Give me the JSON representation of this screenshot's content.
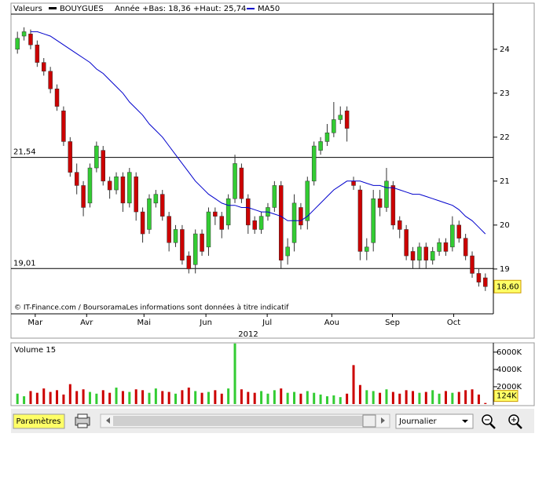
{
  "chart_data": {
    "type": "candlestick",
    "legend_label": "Valeurs",
    "symbol": "BOUYGUES",
    "range_text": "Année +Bas: 18,36 +Haut: 25,74",
    "copyright": "© IT-Finance.com / BoursoramaLes informations sont données à titre indicatif",
    "year": "2012",
    "open": [
      24.0,
      24.3,
      24.35,
      24.1,
      23.7,
      23.5,
      23.1,
      22.6,
      21.9,
      21.2,
      20.9,
      20.5,
      21.3,
      21.7,
      21.0,
      20.8,
      21.1,
      20.5,
      21.1,
      20.3,
      19.9,
      20.5,
      20.7,
      20.2,
      19.6,
      19.9,
      19.3,
      19.1,
      19.8,
      19.5,
      20.3,
      20.2,
      20.0,
      20.6,
      21.3,
      20.6,
      20.1,
      19.9,
      20.2,
      20.4,
      20.9,
      19.3,
      19.6,
      20.4,
      20.1,
      21.0,
      21.7,
      21.9,
      22.1,
      22.4,
      22.6,
      21.0,
      20.8,
      19.4,
      19.6,
      20.6,
      20.4,
      20.9,
      20.1,
      19.9,
      19.4,
      19.2,
      19.5,
      19.2,
      19.4,
      19.6,
      19.5,
      20.0,
      19.7,
      19.3,
      18.9,
      18.8
    ],
    "high": [
      24.4,
      24.5,
      24.45,
      24.2,
      23.8,
      23.6,
      23.2,
      22.7,
      22.0,
      21.4,
      21.0,
      21.4,
      21.9,
      21.8,
      21.1,
      21.2,
      21.2,
      21.3,
      21.2,
      20.4,
      20.7,
      20.8,
      20.8,
      20.3,
      20.0,
      20.0,
      19.4,
      19.9,
      19.9,
      20.4,
      20.4,
      20.3,
      20.7,
      21.6,
      21.4,
      20.7,
      20.2,
      20.3,
      20.5,
      21.0,
      21.0,
      19.7,
      20.7,
      20.5,
      21.1,
      21.9,
      22.0,
      22.3,
      22.8,
      22.7,
      22.7,
      21.1,
      20.9,
      19.7,
      20.8,
      20.8,
      21.3,
      21.0,
      20.2,
      20.0,
      19.5,
      19.6,
      19.6,
      19.5,
      19.7,
      19.7,
      20.2,
      20.1,
      19.8,
      19.4,
      19.0,
      18.9
    ],
    "low": [
      23.9,
      24.2,
      24.0,
      23.6,
      23.4,
      23.0,
      22.6,
      21.8,
      21.1,
      20.7,
      20.2,
      20.4,
      21.2,
      20.9,
      20.6,
      20.7,
      20.3,
      20.4,
      20.1,
      19.6,
      19.8,
      20.4,
      20.1,
      19.4,
      19.5,
      19.1,
      18.9,
      18.9,
      19.3,
      19.3,
      20.0,
      19.7,
      19.9,
      20.5,
      20.5,
      19.8,
      19.8,
      19.8,
      20.1,
      20.3,
      19.0,
      19.1,
      19.4,
      19.9,
      19.9,
      20.9,
      21.6,
      21.8,
      22.0,
      22.3,
      21.9,
      20.8,
      19.2,
      19.2,
      19.4,
      20.2,
      20.3,
      19.9,
      19.7,
      19.2,
      19.0,
      19.0,
      19.0,
      19.1,
      19.3,
      19.3,
      19.4,
      19.6,
      19.2,
      18.8,
      18.6,
      18.5
    ],
    "close": [
      24.25,
      24.4,
      24.1,
      23.7,
      23.5,
      23.1,
      22.7,
      21.9,
      21.2,
      20.9,
      20.4,
      21.3,
      21.8,
      21.0,
      20.8,
      21.1,
      20.5,
      21.2,
      20.3,
      19.8,
      20.6,
      20.7,
      20.2,
      19.6,
      19.9,
      19.2,
      19.0,
      19.8,
      19.4,
      20.3,
      20.2,
      19.9,
      20.6,
      21.4,
      20.6,
      20.0,
      19.9,
      20.2,
      20.4,
      20.9,
      19.2,
      19.5,
      20.5,
      20.0,
      21.0,
      21.8,
      21.9,
      22.1,
      22.4,
      22.5,
      22.2,
      20.9,
      19.4,
      19.5,
      20.6,
      20.4,
      21.0,
      20.0,
      19.9,
      19.3,
      19.2,
      19.5,
      19.2,
      19.4,
      19.6,
      19.4,
      20.0,
      19.7,
      19.3,
      18.9,
      18.7,
      18.6
    ],
    "series": [
      {
        "name": "MA50",
        "color": "#0000cc",
        "values": [
          null,
          null,
          24.4,
          24.4,
          24.35,
          24.3,
          24.2,
          24.1,
          24.0,
          23.9,
          23.8,
          23.7,
          23.55,
          23.45,
          23.3,
          23.15,
          23.0,
          22.8,
          22.65,
          22.5,
          22.3,
          22.15,
          22.0,
          21.8,
          21.6,
          21.4,
          21.2,
          21.0,
          20.85,
          20.7,
          20.6,
          20.5,
          20.45,
          20.45,
          20.4,
          20.4,
          20.35,
          20.3,
          20.3,
          20.25,
          20.2,
          20.1,
          20.1,
          20.1,
          20.2,
          20.35,
          20.5,
          20.65,
          20.8,
          20.9,
          21.0,
          21.0,
          21.0,
          20.95,
          20.9,
          20.9,
          20.85,
          20.85,
          20.8,
          20.75,
          20.7,
          20.7,
          20.65,
          20.6,
          20.55,
          20.5,
          20.45,
          20.35,
          20.2,
          20.1,
          19.95,
          19.8
        ]
      }
    ],
    "up_color": "#33cc33",
    "down_color": "#cc0000",
    "ylim": [
      17.98,
      24.8
    ],
    "yticks": [
      19,
      20,
      21,
      22,
      23,
      24
    ],
    "xlim": [
      -0.5,
      71.5
    ],
    "xticks": [
      {
        "value": 2.7,
        "label": "Mar"
      },
      {
        "value": 10.5,
        "label": "Avr"
      },
      {
        "value": 19.2,
        "label": "Mai"
      },
      {
        "value": 28.6,
        "label": "Jun"
      },
      {
        "value": 37.9,
        "label": "Jul"
      },
      {
        "value": 47.7,
        "label": "Aou"
      },
      {
        "value": 56.9,
        "label": "Sep"
      },
      {
        "value": 66.2,
        "label": "Oct"
      }
    ],
    "levels": [
      {
        "value": 21.54,
        "label": "21,54"
      },
      {
        "value": 19.01,
        "label": "19,01"
      }
    ],
    "last_price": {
      "value": 18.6,
      "label": "18,60"
    },
    "volume": {
      "title": "Volume 15",
      "values": [
        1200,
        900,
        1500,
        1300,
        1800,
        1400,
        1600,
        1100,
        2300,
        1500,
        1700,
        1400,
        1200,
        1600,
        1300,
        1900,
        1500,
        1400,
        1700,
        1600,
        1300,
        1800,
        1500,
        1400,
        1200,
        1600,
        1900,
        1500,
        1300,
        1400,
        1600,
        1200,
        1800,
        7000,
        1700,
        1400,
        1300,
        1500,
        1200,
        1600,
        1800,
        1300,
        1400,
        1200,
        1500,
        1300,
        1100,
        900,
        1000,
        800,
        1200,
        4500,
        2200,
        1600,
        1500,
        1300,
        1700,
        1400,
        1200,
        1600,
        1500,
        1300,
        1400,
        1600,
        1200,
        1500,
        1300,
        1400,
        1600,
        1700,
        1100,
        124
      ],
      "ylim": [
        0,
        6800
      ],
      "yticks": [
        {
          "value": 2000,
          "label": "2000K"
        },
        {
          "value": 4000,
          "label": "4000K"
        },
        {
          "value": 6000,
          "label": "6000K"
        }
      ],
      "last": {
        "value": 124,
        "label": "124K"
      }
    },
    "toolbar": {
      "button": "Paramètres",
      "period": "Journalier"
    }
  }
}
